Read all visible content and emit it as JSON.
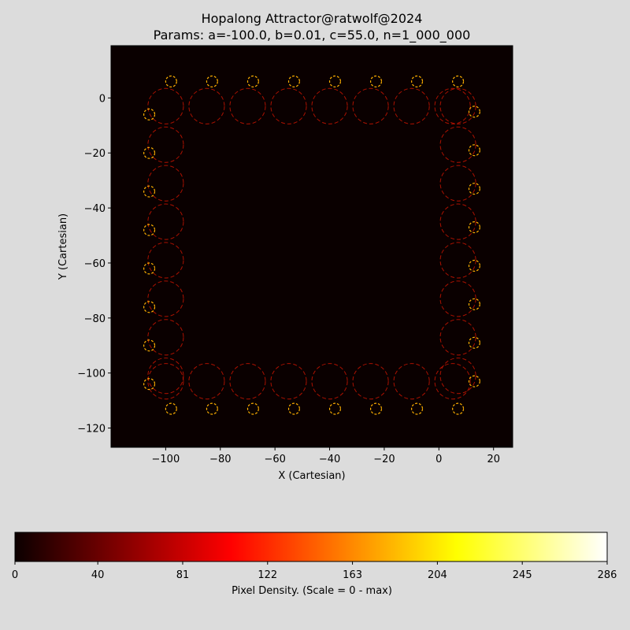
{
  "chart_data": {
    "type": "heatmap",
    "title": "Hopalong Attractor@ratwolf@2024",
    "subtitle": "Params: a=-100.0, b=0.01, c=55.0, n=1_000_000",
    "xlabel": "X (Cartesian)",
    "ylabel": "Y (Cartesian)",
    "xlim": [
      -120,
      27
    ],
    "ylim": [
      -127,
      19
    ],
    "x_ticks": [
      -100,
      -80,
      -60,
      -40,
      -20,
      0,
      20
    ],
    "y_ticks": [
      0,
      -20,
      -40,
      -60,
      -80,
      -100,
      -120
    ],
    "x_tick_labels": [
      "−100",
      "−80",
      "−60",
      "−40",
      "−20",
      "0",
      "20"
    ],
    "y_tick_labels": [
      "0",
      "−20",
      "−40",
      "−60",
      "−80",
      "−100",
      "−120"
    ],
    "grid": false,
    "colormap": "hot",
    "background_color": "#0a0000",
    "figure_color": "#dcdcdc",
    "pattern": {
      "top_row_y": -3,
      "bottom_row_y": -103,
      "left_col_x": -100,
      "right_col_x": 7,
      "horizontal_centers_x": [
        -100,
        -85,
        -70,
        -55,
        -40,
        -25,
        -10,
        5
      ],
      "vertical_centers_y": [
        -3,
        -17,
        -31,
        -45,
        -59,
        -73,
        -87,
        -101
      ],
      "large_loop_radius": 6.5,
      "small_loop_radius": 2.0
    },
    "colorbar": {
      "label": "Pixel Density. (Scale = 0 - max)",
      "range": [
        0,
        286
      ],
      "ticks": [
        0,
        40,
        81,
        122,
        163,
        204,
        245,
        286
      ],
      "tick_labels": [
        "0",
        "40",
        "81",
        "122",
        "163",
        "204",
        "245",
        "286"
      ]
    }
  }
}
